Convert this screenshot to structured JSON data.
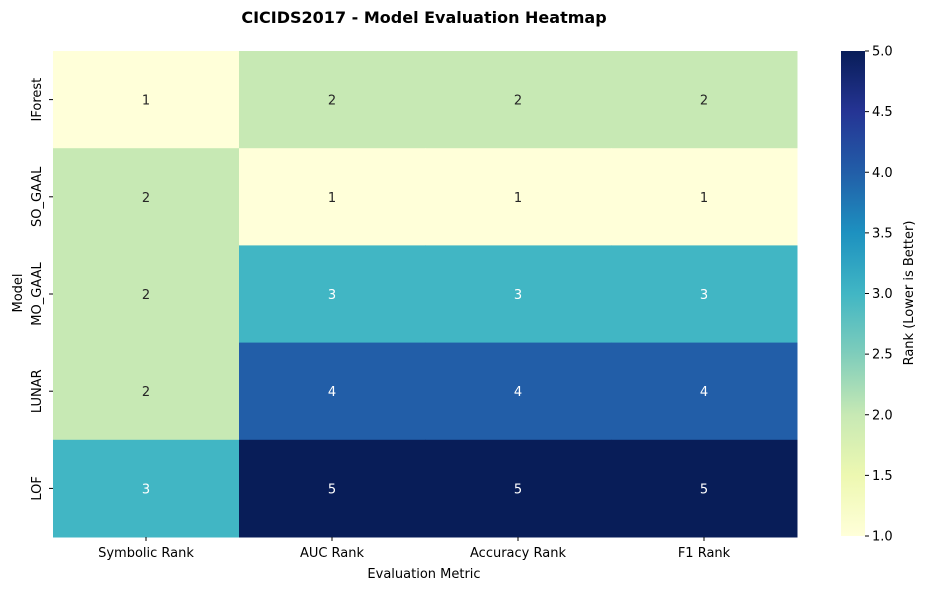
{
  "chart_data": {
    "type": "heatmap",
    "title": "CICIDS2017 - Model Evaluation Heatmap",
    "xlabel": "Evaluation Metric",
    "ylabel": "Model",
    "x_categories": [
      "Symbolic Rank",
      "AUC Rank",
      "Accuracy Rank",
      "F1 Rank"
    ],
    "y_categories": [
      "IForest",
      "SO_GAAL",
      "MO_GAAL",
      "LUNAR",
      "LOF"
    ],
    "values": [
      [
        1,
        2,
        2,
        2
      ],
      [
        2,
        1,
        1,
        1
      ],
      [
        2,
        3,
        3,
        3
      ],
      [
        2,
        4,
        4,
        4
      ],
      [
        3,
        5,
        5,
        5
      ]
    ],
    "colorbar": {
      "label": "Rank (Lower is Better)",
      "range": [
        1.0,
        5.0
      ],
      "ticks": [
        "1.0",
        "1.5",
        "2.0",
        "2.5",
        "3.0",
        "3.5",
        "4.0",
        "4.5",
        "5.0"
      ],
      "colormap": "YlGnBu"
    },
    "cell_colors": {
      "1": "#ffffd9",
      "2": "#c7e9b4",
      "3": "#41b6c4",
      "4": "#225ea8",
      "5": "#081d58"
    },
    "grid": false,
    "legend": "colorbar-right"
  }
}
